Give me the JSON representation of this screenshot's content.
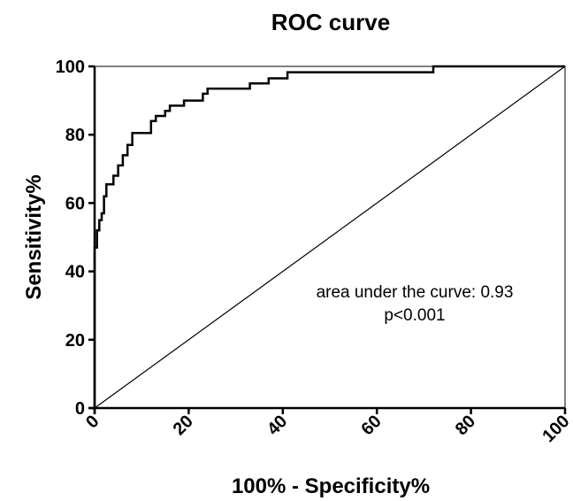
{
  "chart_data": {
    "type": "line",
    "title": "ROC curve",
    "xlabel": "100% - Specificity%",
    "ylabel": "Sensitivity%",
    "xlim": [
      0,
      100
    ],
    "ylim": [
      0,
      100
    ],
    "xticks": [
      0,
      20,
      40,
      60,
      80,
      100
    ],
    "yticks": [
      0,
      20,
      40,
      60,
      80,
      100
    ],
    "x_tick_labels": [
      "0",
      "20",
      "40",
      "60",
      "80",
      "100"
    ],
    "y_tick_labels": [
      "0",
      "20",
      "40",
      "60",
      "80",
      "100"
    ],
    "grid": false,
    "annotations": [
      "area under the curve: 0.93",
      "p<0.001"
    ],
    "series": [
      {
        "x": [
          0,
          0,
          0.5,
          0.5,
          1,
          1,
          1.5,
          1.5,
          2,
          2,
          2.5,
          2.5,
          4,
          4,
          5,
          5,
          6,
          6,
          7,
          7,
          8,
          8,
          9,
          9,
          12,
          12,
          13,
          13,
          15,
          15,
          16,
          16,
          19,
          19,
          23,
          23,
          24,
          24,
          33,
          33,
          37,
          37,
          41,
          41,
          72,
          72,
          100
        ],
        "y": [
          0,
          47,
          47,
          52,
          52,
          55,
          55,
          57,
          57,
          62,
          62,
          65.5,
          65.5,
          68,
          68,
          71,
          71,
          74,
          74,
          77,
          77,
          80.5,
          80.5,
          80.5,
          80.5,
          84,
          84,
          85.5,
          85.5,
          87,
          87,
          88.5,
          88.5,
          90,
          90,
          92,
          92,
          93.5,
          93.5,
          95,
          95,
          96.5,
          96.5,
          98.3,
          98.3,
          100,
          100
        ],
        "color": "#000000"
      },
      {
        "x": [
          0,
          100
        ],
        "y": [
          0,
          100
        ],
        "color": "#000000"
      }
    ]
  }
}
